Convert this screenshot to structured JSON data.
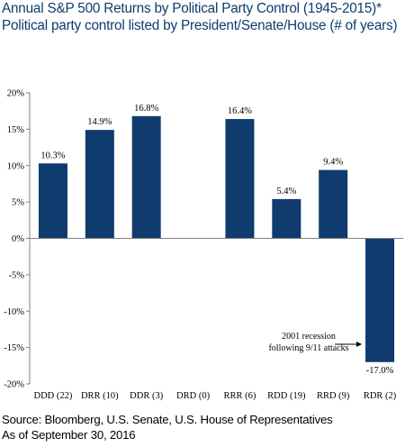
{
  "header": {
    "title": "Annual S&P 500 Returns by Political Party Control (1945-2015)*",
    "subtitle": "Political party control listed by President/Senate/House (# of years)"
  },
  "footer": {
    "source": "Source: Bloomberg, U.S. Senate, U.S. House of Representatives",
    "as_of": "As of September 30, 2016"
  },
  "chart_data": {
    "type": "bar",
    "title": "Annual S&P 500 Returns by Political Party Control (1945-2015)*",
    "subtitle": "Political party control listed by President/Senate/House (# of years)",
    "categories": [
      "DDD (22)",
      "DRR (10)",
      "DDR (3)",
      "DRD (0)",
      "RRR (6)",
      "RDD (19)",
      "RRD (9)",
      "RDR (2)"
    ],
    "values": [
      10.3,
      14.9,
      16.8,
      null,
      16.4,
      5.4,
      9.4,
      -17.0
    ],
    "data_labels": [
      "10.3%",
      "14.9%",
      "16.8%",
      "",
      "16.4%",
      "5.4%",
      "9.4%",
      "-17.0%"
    ],
    "yticks": [
      20,
      15,
      10,
      5,
      0,
      -5,
      -10,
      -15,
      -20
    ],
    "ytick_labels": [
      "20%",
      "15%",
      "10%",
      "5%",
      "0%",
      "-5%",
      "-10%",
      "-15%",
      "-20%"
    ],
    "ylim": [
      -20,
      20
    ],
    "xlabel": "",
    "ylabel": "",
    "grid": false,
    "legend": "none",
    "bar_color": "#0f3b6e",
    "axis_color": "#808080",
    "annotation": {
      "lines": [
        "2001 recession",
        "following 9/11 attacks"
      ],
      "arrow_target": "RDR (2)"
    }
  }
}
